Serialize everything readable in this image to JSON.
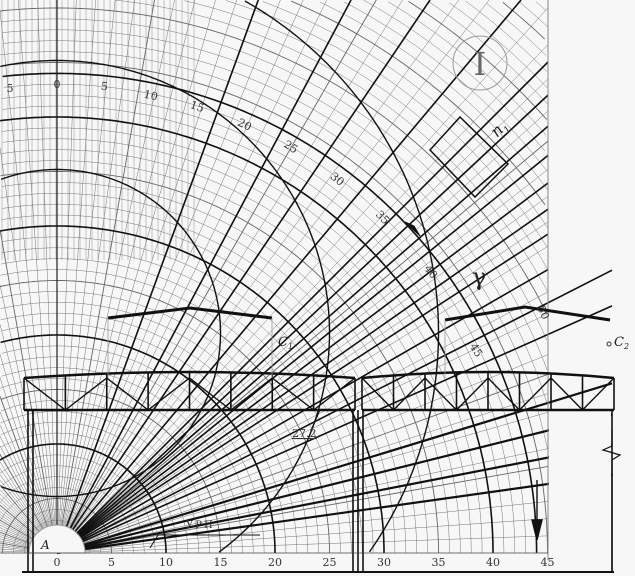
{
  "diagram": {
    "roman_label": "I",
    "normal_label": "n",
    "normal_subscript": "1",
    "angle_label": "γ",
    "point_a": "A",
    "point_c1": "C",
    "point_c1_sub": "1",
    "point_c2": "C",
    "point_c2_sub": "2",
    "level_label": "УРП",
    "dimension_label": "27.2",
    "arc_scale_labels": [
      "5",
      "0",
      "5",
      "10",
      "15",
      "20",
      "25",
      "30",
      "35",
      "40",
      "45",
      "50"
    ],
    "axis_labels": [
      "0",
      "5",
      "10",
      "15",
      "20",
      "25",
      "30",
      "35",
      "40",
      "45"
    ],
    "colors": {
      "background": "#f7f7f7",
      "grid": "#555555",
      "bold": "#111111"
    }
  }
}
